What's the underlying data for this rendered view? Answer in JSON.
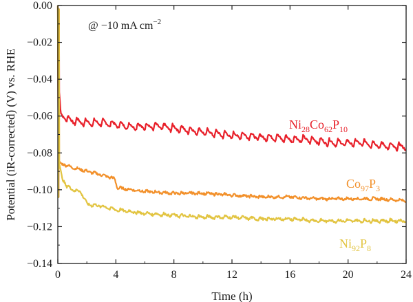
{
  "chart_data": {
    "type": "line",
    "xlabel": "Time (h)",
    "ylabel": "Potential (iR-corrected) (V) vs. RHE",
    "xlim": [
      0,
      24
    ],
    "ylim": [
      -0.14,
      0.0
    ],
    "xticks": [
      0,
      4,
      8,
      12,
      16,
      20,
      24
    ],
    "yticks": [
      0.0,
      -0.02,
      -0.04,
      -0.06,
      -0.08,
      -0.1,
      -0.12,
      -0.14
    ],
    "xtick_labels": [
      "0",
      "4",
      "8",
      "12",
      "16",
      "20",
      "24"
    ],
    "ytick_labels": [
      "0.00",
      "−0.02",
      "−0.04",
      "−0.06",
      "−0.08",
      "−0.10",
      "−0.12",
      "−0.14"
    ],
    "annotation": {
      "prefix": "@ −10 mA cm",
      "sup": "−2"
    },
    "grid": false,
    "series": [
      {
        "name": "Ni28Co62P10",
        "label_parts": [
          [
            "Ni",
            ""
          ],
          [
            "28",
            "sub"
          ],
          [
            "Co",
            ""
          ],
          [
            "62",
            "sub"
          ],
          [
            "P",
            ""
          ],
          [
            "10",
            "sub"
          ]
        ],
        "color": "#e8202a",
        "x": [
          0.1,
          0.2,
          0.4,
          1,
          2,
          3,
          4,
          5,
          6,
          7,
          8,
          9,
          10,
          11,
          12,
          13,
          14,
          15,
          16,
          17,
          18,
          19,
          20,
          21,
          22,
          23,
          24
        ],
        "y": [
          -0.047,
          -0.058,
          -0.061,
          -0.063,
          -0.064,
          -0.064,
          -0.065,
          -0.066,
          -0.066,
          -0.066,
          -0.067,
          -0.068,
          -0.069,
          -0.07,
          -0.071,
          -0.071,
          -0.072,
          -0.072,
          -0.073,
          -0.073,
          -0.074,
          -0.075,
          -0.075,
          -0.075,
          -0.076,
          -0.077,
          -0.077
        ],
        "sawtooth_amplitude": 0.004
      },
      {
        "name": "Co97P3",
        "label_parts": [
          [
            "Co",
            ""
          ],
          [
            "97",
            "sub"
          ],
          [
            "P",
            ""
          ],
          [
            "3",
            "sub"
          ]
        ],
        "color": "#f2902a",
        "x": [
          0.1,
          0.3,
          1,
          2,
          3,
          3.9,
          4.1,
          5,
          6,
          8,
          10,
          12,
          14,
          16,
          18,
          20,
          22,
          24
        ],
        "y": [
          -0.085,
          -0.086,
          -0.088,
          -0.09,
          -0.092,
          -0.094,
          -0.099,
          -0.1,
          -0.101,
          -0.102,
          -0.102,
          -0.103,
          -0.104,
          -0.104,
          -0.105,
          -0.105,
          -0.105,
          -0.106
        ],
        "sawtooth_amplitude": 0.001
      },
      {
        "name": "Ni92P8",
        "label_parts": [
          [
            "Ni",
            ""
          ],
          [
            "92",
            "sub"
          ],
          [
            "P",
            ""
          ],
          [
            "8",
            "sub"
          ]
        ],
        "color": "#e2c441",
        "x": [
          0.1,
          0.3,
          0.6,
          1,
          1.5,
          1.8,
          2,
          3,
          4,
          6,
          8,
          10,
          12,
          14,
          16,
          18,
          20,
          22,
          24
        ],
        "y": [
          -0.085,
          -0.094,
          -0.098,
          -0.1,
          -0.101,
          -0.104,
          -0.108,
          -0.109,
          -0.111,
          -0.113,
          -0.114,
          -0.115,
          -0.115,
          -0.116,
          -0.116,
          -0.117,
          -0.117,
          -0.117,
          -0.117
        ],
        "sawtooth_amplitude": 0.0015
      }
    ]
  }
}
